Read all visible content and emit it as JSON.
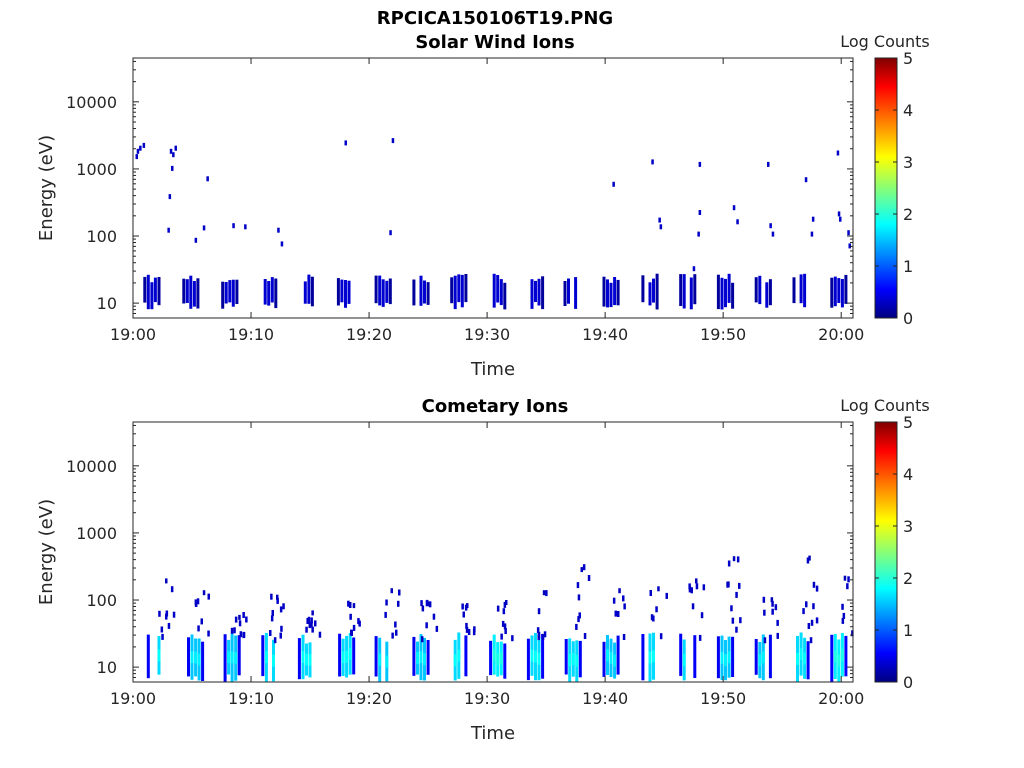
{
  "figure_title": "RPCICA150106T19.PNG",
  "colors": {
    "colormap": "jet",
    "background": "#ffffff",
    "axes": "#262626"
  },
  "chart_data": [
    {
      "type": "heatmap",
      "title": "Solar Wind Ions",
      "xlabel": "Time",
      "ylabel": "Energy (eV)",
      "x_ticks": [
        "19:00",
        "19:10",
        "19:20",
        "19:30",
        "19:40",
        "19:50",
        "20:00"
      ],
      "x_range_minutes": [
        0,
        61
      ],
      "y_scale": "log",
      "y_ticks": [
        10,
        100,
        1000,
        10000
      ],
      "y_range": [
        6,
        45000
      ],
      "colorbar": {
        "label": "Log Counts",
        "range": [
          0,
          5
        ],
        "ticks": [
          "0",
          "1",
          "2",
          "3",
          "4",
          "5"
        ]
      },
      "grid": false,
      "bursts": [
        {
          "t": 1.6,
          "emin": 8,
          "emax": 25,
          "level": 0.4
        },
        {
          "t": 4.9,
          "emin": 8,
          "emax": 25,
          "level": 0.4
        },
        {
          "t": 8.2,
          "emin": 8,
          "emax": 25,
          "level": 0.4
        },
        {
          "t": 11.5,
          "emin": 8,
          "emax": 25,
          "level": 0.4
        },
        {
          "t": 14.6,
          "emin": 8,
          "emax": 25,
          "level": 0.4
        },
        {
          "t": 18.0,
          "emin": 8,
          "emax": 25,
          "level": 0.4
        },
        {
          "t": 21.2,
          "emin": 8,
          "emax": 25,
          "level": 0.4
        },
        {
          "t": 24.4,
          "emin": 8,
          "emax": 25,
          "level": 0.4
        },
        {
          "t": 27.6,
          "emin": 8,
          "emax": 25,
          "level": 0.4
        },
        {
          "t": 30.9,
          "emin": 8,
          "emax": 25,
          "level": 0.4
        },
        {
          "t": 34.1,
          "emin": 8,
          "emax": 25,
          "level": 0.4
        },
        {
          "t": 37.2,
          "emin": 8,
          "emax": 25,
          "level": 0.4
        },
        {
          "t": 40.5,
          "emin": 8,
          "emax": 25,
          "level": 0.4
        },
        {
          "t": 43.8,
          "emin": 8,
          "emax": 25,
          "level": 0.4
        },
        {
          "t": 47.0,
          "emin": 8,
          "emax": 25,
          "level": 0.4
        },
        {
          "t": 50.2,
          "emin": 8,
          "emax": 25,
          "level": 0.4
        },
        {
          "t": 53.4,
          "emin": 8,
          "emax": 25,
          "level": 0.4
        },
        {
          "t": 56.6,
          "emin": 8,
          "emax": 25,
          "level": 0.4
        },
        {
          "t": 59.8,
          "emin": 8,
          "emax": 25,
          "level": 0.4
        }
      ],
      "points": [
        [
          0.3,
          1500
        ],
        [
          0.4,
          1800
        ],
        [
          0.6,
          2000
        ],
        [
          0.9,
          2200
        ],
        [
          3.2,
          1800
        ],
        [
          3.4,
          1600
        ],
        [
          3.6,
          2000
        ],
        [
          3.3,
          1000
        ],
        [
          3.1,
          380
        ],
        [
          3.0,
          120
        ],
        [
          5.3,
          85
        ],
        [
          6.0,
          130
        ],
        [
          6.3,
          700
        ],
        [
          8.5,
          140
        ],
        [
          9.5,
          135
        ],
        [
          12.3,
          120
        ],
        [
          12.6,
          75
        ],
        [
          18.0,
          2400
        ],
        [
          22.0,
          2600
        ],
        [
          21.8,
          110
        ],
        [
          40.7,
          580
        ],
        [
          44.0,
          1250
        ],
        [
          44.6,
          170
        ],
        [
          44.7,
          135
        ],
        [
          47.5,
          32
        ],
        [
          48.0,
          1150
        ],
        [
          48.0,
          220
        ],
        [
          47.9,
          105
        ],
        [
          50.9,
          260
        ],
        [
          51.2,
          160
        ],
        [
          53.8,
          1150
        ],
        [
          54.0,
          140
        ],
        [
          54.2,
          105
        ],
        [
          57.0,
          680
        ],
        [
          57.6,
          175
        ],
        [
          57.5,
          105
        ],
        [
          59.7,
          1700
        ],
        [
          59.8,
          210
        ],
        [
          59.9,
          175
        ],
        [
          60.6,
          110
        ],
        [
          60.7,
          70
        ]
      ]
    },
    {
      "type": "heatmap",
      "title": "Cometary Ions",
      "xlabel": "Time",
      "ylabel": "Energy (eV)",
      "x_ticks": [
        "19:00",
        "19:10",
        "19:20",
        "19:30",
        "19:40",
        "19:50",
        "20:00"
      ],
      "x_range_minutes": [
        0,
        61
      ],
      "y_scale": "log",
      "y_ticks": [
        10,
        100,
        1000,
        10000
      ],
      "y_range": [
        6,
        45000
      ],
      "colorbar": {
        "label": "Log Counts",
        "range": [
          0,
          5
        ],
        "ticks": [
          "0",
          "1",
          "2",
          "3",
          "4",
          "5"
        ]
      },
      "grid": false,
      "bursts": [
        {
          "t": 1.9,
          "emin": 6,
          "emax": 30,
          "level": 1.7
        },
        {
          "t": 5.3,
          "emin": 6,
          "emax": 28,
          "level": 1.6
        },
        {
          "t": 8.4,
          "emin": 6,
          "emax": 30,
          "level": 1.6
        },
        {
          "t": 11.6,
          "emin": 6,
          "emax": 30,
          "level": 1.7
        },
        {
          "t": 14.7,
          "emin": 6,
          "emax": 28,
          "level": 1.7
        },
        {
          "t": 18.1,
          "emin": 6,
          "emax": 30,
          "level": 1.7
        },
        {
          "t": 21.2,
          "emin": 6,
          "emax": 28,
          "level": 1.6
        },
        {
          "t": 24.4,
          "emin": 6,
          "emax": 30,
          "level": 1.6
        },
        {
          "t": 27.6,
          "emin": 6,
          "emax": 30,
          "level": 1.7
        },
        {
          "t": 30.9,
          "emin": 6,
          "emax": 28,
          "level": 1.8
        },
        {
          "t": 34.1,
          "emin": 6,
          "emax": 30,
          "level": 1.7
        },
        {
          "t": 37.3,
          "emin": 6,
          "emax": 30,
          "level": 1.7
        },
        {
          "t": 40.5,
          "emin": 6,
          "emax": 28,
          "level": 1.6
        },
        {
          "t": 43.8,
          "emin": 6,
          "emax": 30,
          "level": 1.7
        },
        {
          "t": 47.0,
          "emin": 6,
          "emax": 30,
          "level": 1.7
        },
        {
          "t": 50.2,
          "emin": 6,
          "emax": 28,
          "level": 1.6
        },
        {
          "t": 53.4,
          "emin": 6,
          "emax": 28,
          "level": 1.6
        },
        {
          "t": 56.6,
          "emin": 6,
          "emax": 30,
          "level": 1.7
        },
        {
          "t": 59.8,
          "emin": 6,
          "emax": 30,
          "level": 1.8
        }
      ],
      "tails": [
        {
          "t": 2.8,
          "emax": 210
        },
        {
          "t": 6.0,
          "emax": 140
        },
        {
          "t": 9.0,
          "emax": 60
        },
        {
          "t": 12.2,
          "emax": 120
        },
        {
          "t": 15.2,
          "emax": 70
        },
        {
          "t": 18.7,
          "emax": 90
        },
        {
          "t": 21.9,
          "emax": 150
        },
        {
          "t": 25.1,
          "emax": 95
        },
        {
          "t": 28.3,
          "emax": 90
        },
        {
          "t": 31.6,
          "emax": 100
        },
        {
          "t": 34.8,
          "emax": 140
        },
        {
          "t": 38.0,
          "emax": 310
        },
        {
          "t": 41.2,
          "emax": 150
        },
        {
          "t": 44.5,
          "emax": 160
        },
        {
          "t": 47.7,
          "emax": 210
        },
        {
          "t": 50.9,
          "emax": 450
        },
        {
          "t": 54.1,
          "emax": 110
        },
        {
          "t": 57.3,
          "emax": 460
        },
        {
          "t": 60.3,
          "emax": 230
        }
      ]
    }
  ]
}
